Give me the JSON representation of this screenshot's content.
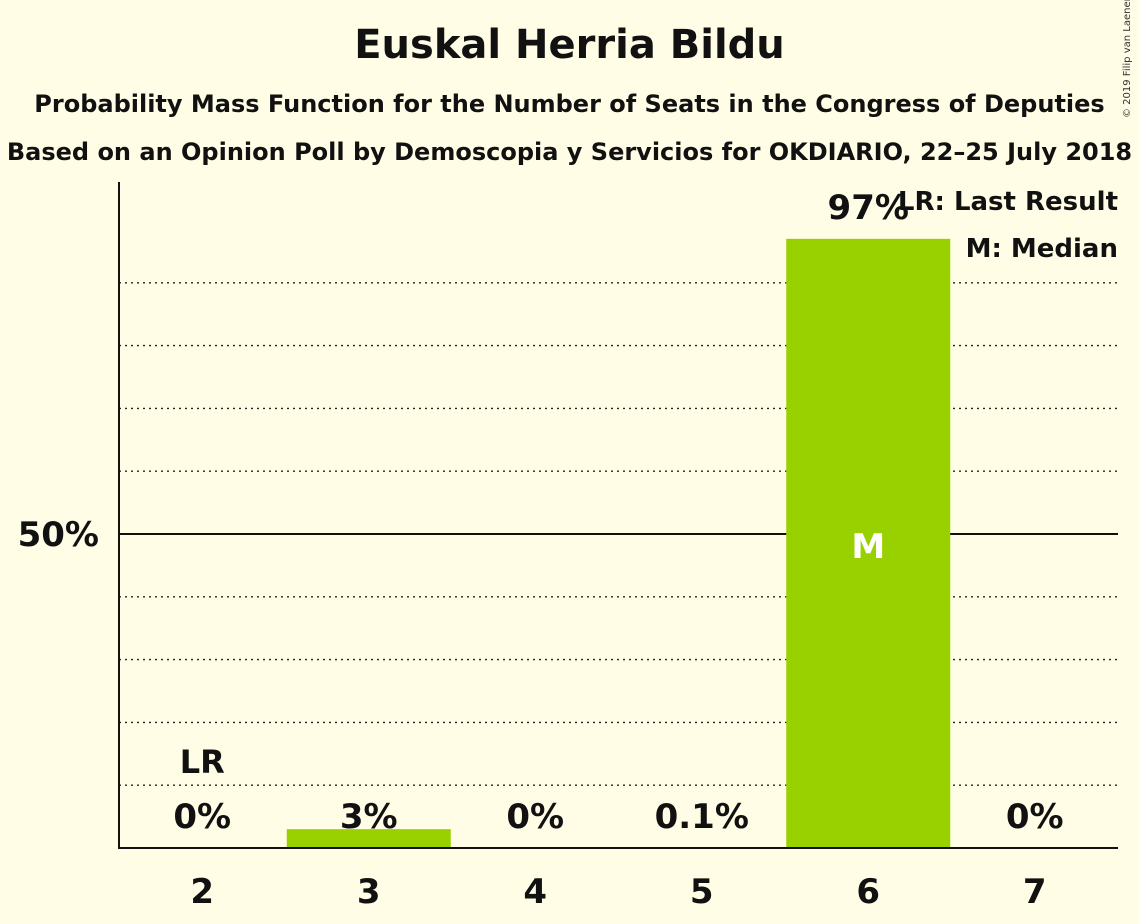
{
  "title": "Euskal Herria Bildu",
  "subtitle1": "Probability Mass Function for the Number of Seats in the Congress of Deputies",
  "subtitle2": "Based on an Opinion Poll by Demoscopia y Servicios for OKDIARIO, 22–25 July 2018",
  "copyright": "© 2019 Filip van Laenen",
  "chart_data": {
    "type": "bar",
    "categories": [
      "2",
      "3",
      "4",
      "5",
      "6",
      "7"
    ],
    "values": [
      0,
      3,
      0,
      0.1,
      97,
      0
    ],
    "value_labels": [
      "0%",
      "3%",
      "0%",
      "0.1%",
      "97%",
      "0%"
    ],
    "ylim": [
      0,
      105
    ],
    "ytick_label": "50%",
    "ytick_value": 50,
    "gridline_step": 10,
    "last_result_category": "2",
    "last_result_marker": "LR",
    "median_category": "6",
    "median_marker": "M",
    "legend": [
      "LR: Last Result",
      "M: Median"
    ],
    "legend_position": "top-right",
    "bar_color": "#99D100"
  }
}
